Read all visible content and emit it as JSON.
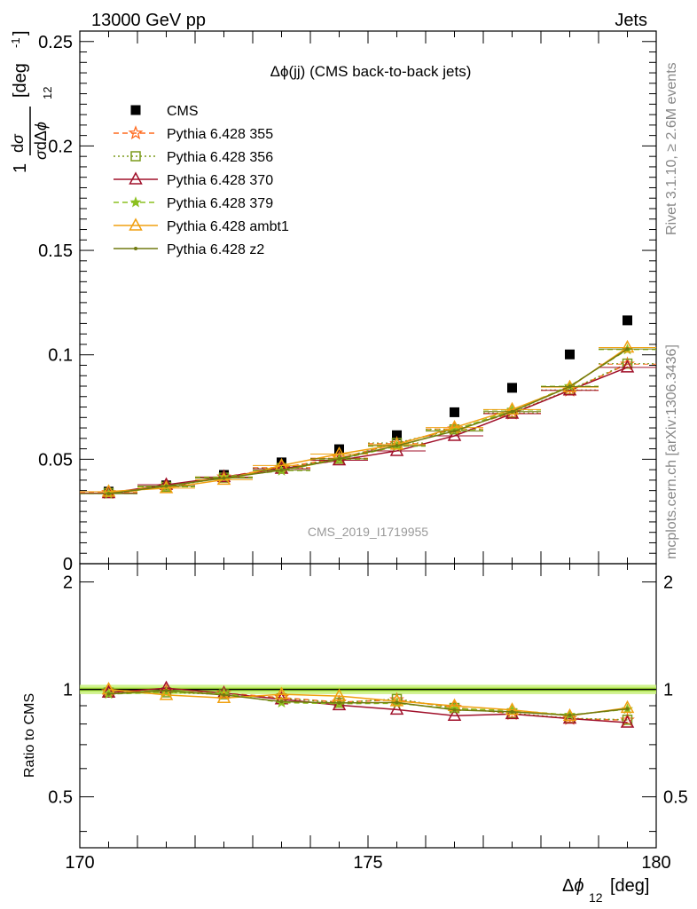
{
  "header": {
    "left": "13000 GeV pp",
    "right": "Jets"
  },
  "side": {
    "rivet": "Rivet 3.1.10, ≥ 2.6M events",
    "mcplots": "mcplots.cern.ch [arXiv:1306.3436]"
  },
  "chart_data": [
    {
      "type": "scatter",
      "title": "Δϕ(jj) (CMS back-to-back jets)",
      "watermark": "CMS_2019_I1719955",
      "ylabel": "1/σ dσ/dΔϕ_12 [deg^-1]",
      "xlim": [
        170,
        180
      ],
      "ylim": [
        0,
        0.255
      ],
      "yticks": [
        "0",
        "0.05",
        "0.1",
        "0.15",
        "0.2",
        "0.25"
      ],
      "x": [
        170.5,
        171.5,
        172.5,
        173.5,
        174.5,
        175.5,
        176.5,
        177.5,
        178.5,
        179.5
      ],
      "series": [
        {
          "name": "CMS",
          "color": "#000000",
          "marker": "square",
          "line": "none",
          "values": [
            0.0345,
            0.0375,
            0.0425,
            0.0485,
            0.0548,
            0.0615,
            0.0725,
            0.0842,
            0.1002,
            0.1165
          ]
        },
        {
          "name": "Pythia 6.428 355",
          "color": "#ff6a1f",
          "marker": "star",
          "line": "dashed",
          "values": [
            0.034,
            0.037,
            0.0415,
            0.046,
            0.0505,
            0.0575,
            0.0645,
            0.072,
            0.083,
            0.0955
          ]
        },
        {
          "name": "Pythia 6.428 356",
          "color": "#7a9a1a",
          "marker": "square-open",
          "line": "dotted",
          "values": [
            0.0338,
            0.0368,
            0.0412,
            0.0458,
            0.0503,
            0.0578,
            0.0643,
            0.0722,
            0.0832,
            0.0958
          ]
        },
        {
          "name": "Pythia 6.428 370",
          "color": "#a0102a",
          "marker": "triangle-open",
          "line": "solid",
          "values": [
            0.0338,
            0.0378,
            0.0415,
            0.0455,
            0.0495,
            0.054,
            0.0612,
            0.0718,
            0.083,
            0.094
          ]
        },
        {
          "name": "Pythia 6.428 379",
          "color": "#8cc020",
          "marker": "star-small",
          "line": "dashed",
          "values": [
            0.0335,
            0.0368,
            0.0415,
            0.0445,
            0.05,
            0.0562,
            0.064,
            0.0735,
            0.085,
            0.1025
          ]
        },
        {
          "name": "Pythia 6.428 ambt1",
          "color": "#f0a010",
          "marker": "triangle-open",
          "line": "solid",
          "values": [
            0.0345,
            0.0362,
            0.0402,
            0.047,
            0.0525,
            0.057,
            0.0652,
            0.0738,
            0.0845,
            0.1035
          ]
        },
        {
          "name": "Pythia 6.428 z2",
          "color": "#707a10",
          "marker": "dot",
          "line": "solid",
          "values": [
            0.0335,
            0.0372,
            0.041,
            0.0448,
            0.0502,
            0.0565,
            0.0635,
            0.0728,
            0.0848,
            0.1028
          ]
        }
      ]
    },
    {
      "type": "line",
      "ylabel": "Ratio to CMS",
      "xlabel": "Δϕ_12 [deg]",
      "xlim": [
        170,
        180
      ],
      "xticks": [
        "170",
        "175",
        "180"
      ],
      "ylim": [
        0.36,
        2.25
      ],
      "yticks": [
        "0.5",
        "1",
        "2"
      ],
      "log_y": true,
      "band": {
        "low": 0.97,
        "high": 1.03
      },
      "x": [
        170.5,
        171.5,
        172.5,
        173.5,
        174.5,
        175.5,
        176.5,
        177.5,
        178.5,
        179.5
      ],
      "series": [
        {
          "name": "Pythia 6.428 355",
          "values": [
            0.985,
            0.987,
            0.976,
            0.948,
            0.921,
            0.935,
            0.89,
            0.855,
            0.828,
            0.82
          ]
        },
        {
          "name": "Pythia 6.428 356",
          "values": [
            0.98,
            0.981,
            0.969,
            0.944,
            0.918,
            0.94,
            0.887,
            0.857,
            0.83,
            0.822
          ]
        },
        {
          "name": "Pythia 6.428 370",
          "values": [
            0.98,
            1.008,
            0.976,
            0.938,
            0.903,
            0.878,
            0.844,
            0.853,
            0.828,
            0.807
          ]
        },
        {
          "name": "Pythia 6.428 379",
          "values": [
            0.971,
            0.981,
            0.976,
            0.918,
            0.912,
            0.914,
            0.883,
            0.873,
            0.848,
            0.88
          ]
        },
        {
          "name": "Pythia 6.428 ambt1",
          "values": [
            1.0,
            0.965,
            0.946,
            0.969,
            0.958,
            0.927,
            0.899,
            0.876,
            0.843,
            0.888
          ]
        },
        {
          "name": "Pythia 6.428 z2",
          "values": [
            0.971,
            0.992,
            0.965,
            0.924,
            0.916,
            0.919,
            0.876,
            0.865,
            0.846,
            0.882
          ]
        }
      ]
    }
  ]
}
